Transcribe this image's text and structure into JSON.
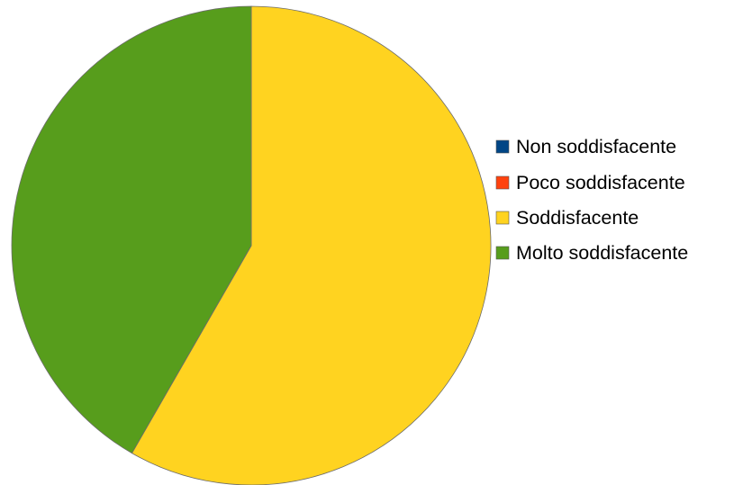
{
  "chart_data": {
    "type": "pie",
    "title": "",
    "categories": [
      "Non soddisfacente",
      "Poco soddisfacente",
      "Soddisfacente",
      "Molto soddisfacente"
    ],
    "values": [
      0,
      0,
      58.3,
      41.7
    ],
    "colors": [
      "#004586",
      "#ff420e",
      "#ffd320",
      "#579d1c"
    ],
    "start_angle_deg": 0,
    "direction": "clockwise",
    "legend": {
      "position": "right",
      "entries": [
        "Non soddisfacente",
        "Poco soddisfacente",
        "Soddisfacente",
        "Molto soddisfacente"
      ]
    }
  }
}
